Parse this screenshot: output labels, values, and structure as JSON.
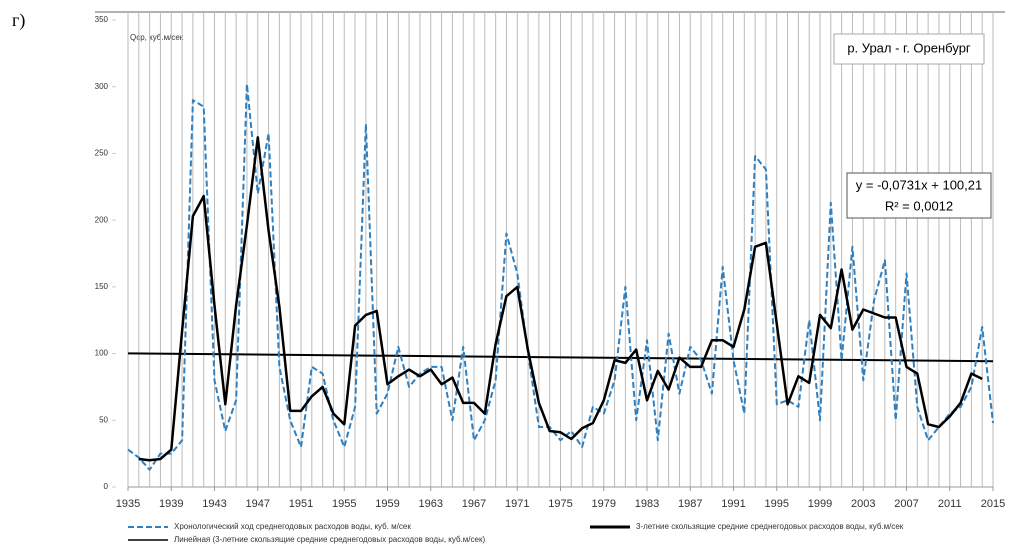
{
  "panel_label": "г)",
  "chart_data": {
    "type": "line",
    "y_label": "Qср, куб.м/сек",
    "annotation": "р. Урал - г. Оренбург",
    "equation": "y = -0,0731x + 100,21",
    "r_squared": "R² = 0,0012",
    "x": [
      1935,
      1936,
      1937,
      1938,
      1939,
      1940,
      1941,
      1942,
      1943,
      1944,
      1945,
      1946,
      1947,
      1948,
      1949,
      1950,
      1951,
      1952,
      1953,
      1954,
      1955,
      1956,
      1957,
      1958,
      1959,
      1960,
      1961,
      1962,
      1963,
      1964,
      1965,
      1966,
      1967,
      1968,
      1969,
      1970,
      1971,
      1972,
      1973,
      1974,
      1975,
      1976,
      1977,
      1978,
      1979,
      1980,
      1981,
      1982,
      1983,
      1984,
      1985,
      1986,
      1987,
      1988,
      1989,
      1990,
      1991,
      1992,
      1993,
      1994,
      1995,
      1996,
      1997,
      1998,
      1999,
      2000,
      2001,
      2002,
      2003,
      2004,
      2005,
      2006,
      2007,
      2008,
      2009,
      2010,
      2011,
      2012,
      2013,
      2014,
      2015
    ],
    "series": [
      {
        "name": "Хронологический ход среднегодовых расходов воды, куб. м/сек",
        "color": "#2f80c0",
        "dashed": true,
        "values": [
          28,
          22,
          13,
          25,
          25,
          35,
          290,
          285,
          80,
          42,
          65,
          302,
          220,
          265,
          90,
          50,
          30,
          90,
          85,
          50,
          30,
          60,
          272,
          55,
          70,
          105,
          75,
          85,
          90,
          90,
          50,
          105,
          35,
          50,
          80,
          190,
          160,
          100,
          45,
          45,
          35,
          42,
          30,
          60,
          55,
          80,
          150,
          50,
          110,
          35,
          115,
          70,
          105,
          95,
          70,
          165,
          95,
          55,
          248,
          238,
          62,
          65,
          60,
          125,
          50,
          213,
          95,
          180,
          80,
          140,
          170,
          50,
          160,
          60,
          35,
          45,
          55,
          60,
          75,
          120,
          48
        ]
      },
      {
        "name": "3-летние скользящие средние среднегодовых расходов воды, куб.м/сек",
        "color": "#000000",
        "dashed": false,
        "values": [
          null,
          21,
          20,
          21,
          28,
          117,
          203,
          218,
          136,
          62,
          136,
          196,
          262,
          192,
          135,
          57,
          57,
          68,
          75,
          55,
          47,
          121,
          129,
          132,
          77,
          83,
          88,
          83,
          88,
          77,
          82,
          63,
          63,
          55,
          107,
          143,
          150,
          102,
          63,
          42,
          41,
          36,
          44,
          48,
          65,
          95,
          93,
          103,
          65,
          87,
          73,
          97,
          90,
          90,
          110,
          110,
          105,
          133,
          180,
          183,
          122,
          62,
          83,
          78,
          129,
          119,
          163,
          118,
          133,
          130,
          127,
          127,
          90,
          85,
          47,
          45,
          53,
          63,
          85,
          81,
          null
        ]
      }
    ],
    "trend": {
      "name": "Линейная (3-летние скользящие средние среднегодовых расходов воды, куб.м/сек)",
      "color": "#000000",
      "x": [
        1935,
        2015
      ],
      "values": [
        100.1,
        94.3
      ]
    },
    "xlim": [
      1935,
      2015
    ],
    "xticks": [
      1935,
      1939,
      1943,
      1947,
      1951,
      1955,
      1959,
      1963,
      1967,
      1971,
      1975,
      1979,
      1983,
      1987,
      1991,
      1995,
      1999,
      2003,
      2007,
      2011,
      2015
    ],
    "ylim": [
      0,
      350
    ],
    "yticks": [
      0,
      50,
      100,
      150,
      200,
      250,
      300,
      350
    ],
    "grid": true
  }
}
